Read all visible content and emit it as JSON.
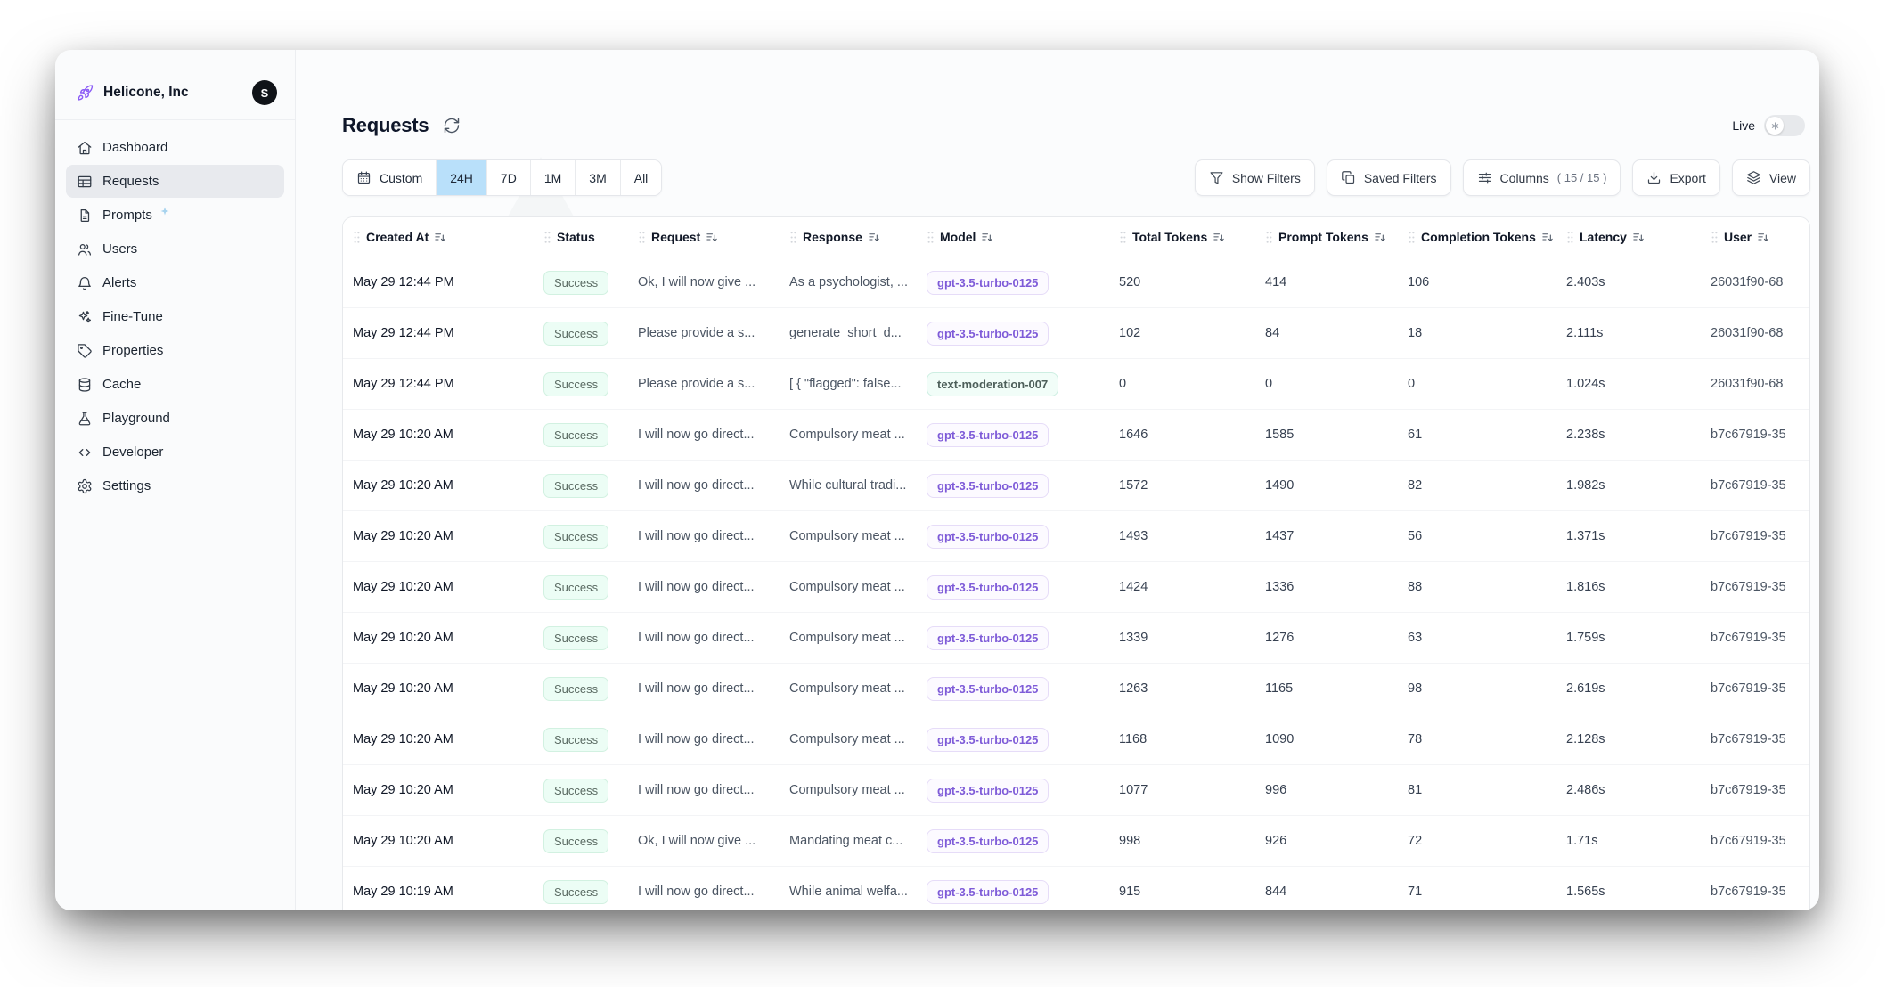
{
  "org": {
    "name": "Helicone, Inc",
    "avatar_initial": "S"
  },
  "sidebar": {
    "items": [
      {
        "label": "Dashboard",
        "icon": "home",
        "active": false
      },
      {
        "label": "Requests",
        "icon": "table",
        "active": true
      },
      {
        "label": "Prompts",
        "icon": "document",
        "active": false,
        "badge": "sparkle"
      },
      {
        "label": "Users",
        "icon": "users",
        "active": false
      },
      {
        "label": "Alerts",
        "icon": "bell",
        "active": false
      },
      {
        "label": "Fine-Tune",
        "icon": "sparkles",
        "active": false
      },
      {
        "label": "Properties",
        "icon": "tag",
        "active": false
      },
      {
        "label": "Cache",
        "icon": "database",
        "active": false
      },
      {
        "label": "Playground",
        "icon": "beaker",
        "active": false
      },
      {
        "label": "Developer",
        "icon": "code",
        "active": false
      },
      {
        "label": "Settings",
        "icon": "gear",
        "active": false
      }
    ]
  },
  "header": {
    "title": "Requests",
    "live_label": "Live",
    "live_on": false
  },
  "time_range": {
    "options": [
      {
        "label": "Custom",
        "icon": "calendar"
      },
      {
        "label": "24H"
      },
      {
        "label": "7D"
      },
      {
        "label": "1M"
      },
      {
        "label": "3M"
      },
      {
        "label": "All"
      }
    ],
    "selected": "24H"
  },
  "toolbar": {
    "buttons": [
      {
        "label": "Show Filters",
        "icon": "funnel"
      },
      {
        "label": "Saved Filters",
        "icon": "copy"
      },
      {
        "label": "Columns",
        "icon": "sliders",
        "suffix": "( 15 / 15 )"
      },
      {
        "label": "Export",
        "icon": "download"
      },
      {
        "label": "View",
        "icon": "layers"
      }
    ]
  },
  "table": {
    "columns": [
      {
        "label": "Created At",
        "sortable": true
      },
      {
        "label": "Status",
        "sortable": false
      },
      {
        "label": "Request",
        "sortable": true
      },
      {
        "label": "Response",
        "sortable": true
      },
      {
        "label": "Model",
        "sortable": true
      },
      {
        "label": "Total Tokens",
        "sortable": true
      },
      {
        "label": "Prompt Tokens",
        "sortable": true
      },
      {
        "label": "Completion Tokens",
        "sortable": true
      },
      {
        "label": "Latency",
        "sortable": true
      },
      {
        "label": "User",
        "sortable": true
      }
    ],
    "rows": [
      {
        "created_at": "May 29 12:44 PM",
        "status": "Success",
        "request": "Ok, I will now give ...",
        "response": "As a psychologist, ...",
        "model": "gpt-3.5-turbo-0125",
        "model_style": "purple",
        "total_tokens": "520",
        "prompt_tokens": "414",
        "completion_tokens": "106",
        "latency": "2.403s",
        "user": "26031f90-68"
      },
      {
        "created_at": "May 29 12:44 PM",
        "status": "Success",
        "request": "Please provide a s...",
        "response": "generate_short_d...",
        "model": "gpt-3.5-turbo-0125",
        "model_style": "purple",
        "total_tokens": "102",
        "prompt_tokens": "84",
        "completion_tokens": "18",
        "latency": "2.111s",
        "user": "26031f90-68"
      },
      {
        "created_at": "May 29 12:44 PM",
        "status": "Success",
        "request": "Please provide a s...",
        "response": "[ { \"flagged\": false...",
        "model": "text-moderation-007",
        "model_style": "teal",
        "total_tokens": "0",
        "prompt_tokens": "0",
        "completion_tokens": "0",
        "latency": "1.024s",
        "user": "26031f90-68"
      },
      {
        "created_at": "May 29 10:20 AM",
        "status": "Success",
        "request": "I will now go direct...",
        "response": "Compulsory meat ...",
        "model": "gpt-3.5-turbo-0125",
        "model_style": "purple",
        "total_tokens": "1646",
        "prompt_tokens": "1585",
        "completion_tokens": "61",
        "latency": "2.238s",
        "user": "b7c67919-35"
      },
      {
        "created_at": "May 29 10:20 AM",
        "status": "Success",
        "request": "I will now go direct...",
        "response": "While cultural tradi...",
        "model": "gpt-3.5-turbo-0125",
        "model_style": "purple",
        "total_tokens": "1572",
        "prompt_tokens": "1490",
        "completion_tokens": "82",
        "latency": "1.982s",
        "user": "b7c67919-35"
      },
      {
        "created_at": "May 29 10:20 AM",
        "status": "Success",
        "request": "I will now go direct...",
        "response": "Compulsory meat ...",
        "model": "gpt-3.5-turbo-0125",
        "model_style": "purple",
        "total_tokens": "1493",
        "prompt_tokens": "1437",
        "completion_tokens": "56",
        "latency": "1.371s",
        "user": "b7c67919-35"
      },
      {
        "created_at": "May 29 10:20 AM",
        "status": "Success",
        "request": "I will now go direct...",
        "response": "Compulsory meat ...",
        "model": "gpt-3.5-turbo-0125",
        "model_style": "purple",
        "total_tokens": "1424",
        "prompt_tokens": "1336",
        "completion_tokens": "88",
        "latency": "1.816s",
        "user": "b7c67919-35"
      },
      {
        "created_at": "May 29 10:20 AM",
        "status": "Success",
        "request": "I will now go direct...",
        "response": "Compulsory meat ...",
        "model": "gpt-3.5-turbo-0125",
        "model_style": "purple",
        "total_tokens": "1339",
        "prompt_tokens": "1276",
        "completion_tokens": "63",
        "latency": "1.759s",
        "user": "b7c67919-35"
      },
      {
        "created_at": "May 29 10:20 AM",
        "status": "Success",
        "request": "I will now go direct...",
        "response": "Compulsory meat ...",
        "model": "gpt-3.5-turbo-0125",
        "model_style": "purple",
        "total_tokens": "1263",
        "prompt_tokens": "1165",
        "completion_tokens": "98",
        "latency": "2.619s",
        "user": "b7c67919-35"
      },
      {
        "created_at": "May 29 10:20 AM",
        "status": "Success",
        "request": "I will now go direct...",
        "response": "Compulsory meat ...",
        "model": "gpt-3.5-turbo-0125",
        "model_style": "purple",
        "total_tokens": "1168",
        "prompt_tokens": "1090",
        "completion_tokens": "78",
        "latency": "2.128s",
        "user": "b7c67919-35"
      },
      {
        "created_at": "May 29 10:20 AM",
        "status": "Success",
        "request": "I will now go direct...",
        "response": "Compulsory meat ...",
        "model": "gpt-3.5-turbo-0125",
        "model_style": "purple",
        "total_tokens": "1077",
        "prompt_tokens": "996",
        "completion_tokens": "81",
        "latency": "2.486s",
        "user": "b7c67919-35"
      },
      {
        "created_at": "May 29 10:20 AM",
        "status": "Success",
        "request": "Ok, I will now give ...",
        "response": "Mandating meat c...",
        "model": "gpt-3.5-turbo-0125",
        "model_style": "purple",
        "total_tokens": "998",
        "prompt_tokens": "926",
        "completion_tokens": "72",
        "latency": "1.71s",
        "user": "b7c67919-35"
      },
      {
        "created_at": "May 29 10:19 AM",
        "status": "Success",
        "request": "I will now go direct...",
        "response": "While animal welfa...",
        "model": "gpt-3.5-turbo-0125",
        "model_style": "purple",
        "total_tokens": "915",
        "prompt_tokens": "844",
        "completion_tokens": "71",
        "latency": "1.565s",
        "user": "b7c67919-35"
      }
    ]
  },
  "colors": {
    "selected_time_bg": "#b9e0fa",
    "success_badge_bg": "#ecfdf5",
    "model_purple_text": "#7e5bd8",
    "model_teal_text": "#4d5f5a",
    "brand_purple": "#8b5cf6"
  }
}
